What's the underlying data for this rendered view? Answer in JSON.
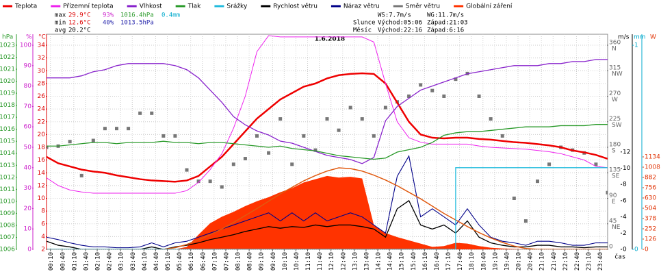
{
  "chart_data": {
    "type": "line",
    "title": "1.6.2018",
    "xlabel": "čas",
    "xlim": [
      0,
      24
    ],
    "xticks": [
      {
        "value": 0.1667,
        "label": "00:10"
      },
      {
        "value": 0.6667,
        "label": "00:40"
      },
      {
        "value": 1.1667,
        "label": "01:10"
      },
      {
        "value": 1.6667,
        "label": "01:40"
      },
      {
        "value": 2.1667,
        "label": "02:10"
      },
      {
        "value": 2.6667,
        "label": "02:40"
      },
      {
        "value": 3.1667,
        "label": "03:10"
      },
      {
        "value": 3.6667,
        "label": "03:40"
      },
      {
        "value": 4.1667,
        "label": "04:10"
      },
      {
        "value": 4.6667,
        "label": "04:40"
      },
      {
        "value": 5.1667,
        "label": "05:10"
      },
      {
        "value": 5.6667,
        "label": "05:40"
      },
      {
        "value": 6.1667,
        "label": "06:10"
      },
      {
        "value": 6.6667,
        "label": "06:40"
      },
      {
        "value": 7.1667,
        "label": "07:10"
      },
      {
        "value": 7.6667,
        "label": "07:40"
      },
      {
        "value": 8.1667,
        "label": "08:10"
      },
      {
        "value": 8.6667,
        "label": "08:40"
      },
      {
        "value": 9.1667,
        "label": "09:10"
      },
      {
        "value": 9.6667,
        "label": "09:40"
      },
      {
        "value": 10.1667,
        "label": "10:10"
      },
      {
        "value": 10.6667,
        "label": "10:40"
      },
      {
        "value": 11.1667,
        "label": "11:10"
      },
      {
        "value": 11.6667,
        "label": "11:40"
      },
      {
        "value": 12.1667,
        "label": "12:10"
      },
      {
        "value": 12.6667,
        "label": "12:40"
      },
      {
        "value": 13.1667,
        "label": "13:10"
      },
      {
        "value": 13.6667,
        "label": "13:40"
      },
      {
        "value": 14.1667,
        "label": "14:10"
      },
      {
        "value": 14.6667,
        "label": "14:40"
      },
      {
        "value": 15.1667,
        "label": "15:10"
      },
      {
        "value": 15.6667,
        "label": "15:40"
      },
      {
        "value": 16.1667,
        "label": "16:10"
      },
      {
        "value": 16.6667,
        "label": "16:40"
      },
      {
        "value": 17.1667,
        "label": "17:10"
      },
      {
        "value": 17.6667,
        "label": "17:40"
      },
      {
        "value": 18.1667,
        "label": "18:10"
      },
      {
        "value": 18.6667,
        "label": "18:40"
      },
      {
        "value": 19.1667,
        "label": "19:10"
      },
      {
        "value": 19.6667,
        "label": "19:40"
      },
      {
        "value": 20.1667,
        "label": "20:10"
      },
      {
        "value": 20.6667,
        "label": "20:40"
      },
      {
        "value": 21.1667,
        "label": "21:10"
      },
      {
        "value": 21.6667,
        "label": "21:40"
      },
      {
        "value": 22.1667,
        "label": "22:10"
      },
      {
        "value": 22.6667,
        "label": "22:40"
      },
      {
        "value": 23.1667,
        "label": "23:10"
      },
      {
        "value": 23.6667,
        "label": "23:40"
      }
    ],
    "grid": true,
    "axes": {
      "press": {
        "unit": "hPa",
        "color": "#2a9a2a",
        "lim": [
          1006,
          1023.91
        ],
        "ticks": [
          1006,
          1007,
          1008,
          1009,
          1010,
          1011,
          1012,
          1013,
          1014,
          1015,
          1016,
          1017,
          1018,
          1019,
          1020,
          1021,
          1022,
          1023
        ]
      },
      "hum": {
        "unit": "%",
        "color": "#cc22cc",
        "lim": [
          0,
          105.37
        ],
        "ticks": [
          0,
          10,
          20,
          30,
          40,
          50,
          60,
          70,
          80,
          90,
          100
        ]
      },
      "temp": {
        "unit": "°C",
        "color": "#dd0000",
        "lim": [
          2,
          35.72
        ],
        "ticks": [
          2,
          4,
          6,
          8,
          10,
          12,
          14,
          16,
          18,
          20,
          22,
          24,
          26,
          28,
          30,
          32,
          34
        ]
      },
      "dir": {
        "color": "#666666",
        "lim": [
          0,
          379.3
        ],
        "ticks": [
          0,
          45,
          90,
          135,
          180,
          225,
          270,
          315,
          360
        ],
        "names": [
          null,
          "NE",
          "E",
          "SE",
          "S",
          "SW",
          "W",
          "NW",
          "N"
        ]
      },
      "wind": {
        "unit": "m/s",
        "color": "#000000",
        "lim": [
          0,
          26.5
        ],
        "ticks": [
          0,
          2,
          4,
          6,
          8,
          10,
          12
        ]
      },
      "rain": {
        "unit": "mm",
        "color": "#00aacc",
        "lim": [
          0,
          1.054
        ],
        "ticks": [
          0,
          1
        ]
      },
      "rad": {
        "unit": "W",
        "color": "#e03000",
        "lim": [
          0,
          2638
        ],
        "ticks": [
          0,
          126,
          252,
          378,
          504,
          630,
          756,
          882,
          1008,
          1134
        ]
      }
    },
    "x": [
      0,
      0.5,
      1,
      1.5,
      2,
      2.5,
      3,
      3.5,
      4,
      4.5,
      5,
      5.5,
      6,
      6.5,
      7,
      7.5,
      8,
      8.5,
      9,
      9.5,
      10,
      10.5,
      11,
      11.5,
      12,
      12.5,
      13,
      13.5,
      14,
      14.5,
      15,
      15.5,
      16,
      16.5,
      17,
      17.5,
      18,
      18.5,
      19,
      19.5,
      20,
      20.5,
      21,
      21.5,
      22,
      22.5,
      23,
      23.5,
      24
    ],
    "series": [
      {
        "name": "Teplota",
        "color": "#ee0000",
        "axis": "temp",
        "kind": "line",
        "width": 2.5,
        "values": [
          16.5,
          15.5,
          15,
          14.5,
          14.2,
          14,
          13.6,
          13.3,
          13,
          12.8,
          12.7,
          12.6,
          12.8,
          13.5,
          15,
          16.5,
          18.5,
          20.5,
          22.5,
          24,
          25.5,
          26.5,
          27.5,
          28,
          28.8,
          29.3,
          29.5,
          29.6,
          29.5,
          28,
          25,
          22,
          20,
          19.5,
          19.4,
          19.5,
          19.5,
          19.3,
          19.2,
          19,
          18.8,
          18.7,
          18.5,
          18.3,
          18,
          17.5,
          17.2,
          16.8,
          16.2
        ]
      },
      {
        "name": "Přízemní teplota",
        "color": "#ee22ee",
        "axis": "temp",
        "kind": "line",
        "width": 1,
        "values": [
          13.2,
          12,
          11.3,
          11,
          10.8,
          10.8,
          10.8,
          10.8,
          10.8,
          10.8,
          10.8,
          10.8,
          11.2,
          12.5,
          14.5,
          17,
          21,
          26,
          33,
          35.5,
          35.3,
          35.3,
          35.3,
          35.3,
          35.3,
          35.3,
          35.3,
          35.3,
          34.5,
          28,
          22,
          19.5,
          18.8,
          18.5,
          18.5,
          18.5,
          18.5,
          18.2,
          18,
          17.9,
          17.8,
          17.7,
          17.5,
          17.3,
          17,
          16.5,
          16,
          15,
          14.8
        ]
      },
      {
        "name": "Vlhkost",
        "color": "#8822cc",
        "axis": "hum",
        "kind": "line",
        "width": 1.3,
        "values": [
          84,
          84,
          84,
          85,
          87,
          88,
          90,
          91,
          91,
          91,
          91,
          90,
          88,
          84,
          78,
          72,
          65,
          61,
          58,
          56,
          53,
          52,
          50,
          48,
          46,
          45,
          44,
          42,
          45,
          63,
          70,
          74,
          78,
          80,
          82,
          84,
          86,
          87,
          88,
          89,
          90,
          90,
          90,
          91,
          91,
          92,
          92,
          93,
          93
        ]
      },
      {
        "name": "Tlak",
        "color": "#2a9a2a",
        "axis": "press",
        "kind": "line",
        "width": 1.3,
        "values": [
          1014.6,
          1014.6,
          1014.7,
          1014.8,
          1014.9,
          1014.9,
          1014.8,
          1014.9,
          1014.9,
          1014.9,
          1015.0,
          1014.9,
          1014.9,
          1014.8,
          1014.9,
          1014.9,
          1014.8,
          1014.7,
          1014.6,
          1014.5,
          1014.6,
          1014.4,
          1014.3,
          1014.2,
          1014.0,
          1013.8,
          1013.7,
          1013.6,
          1013.5,
          1013.6,
          1014.1,
          1014.3,
          1014.5,
          1014.9,
          1015.5,
          1015.7,
          1015.8,
          1015.8,
          1015.9,
          1016.0,
          1016.1,
          1016.2,
          1016.2,
          1016.2,
          1016.3,
          1016.3,
          1016.3,
          1016.4,
          1016.4
        ]
      },
      {
        "name": "Srážky",
        "color": "#22bbdd",
        "axis": "rain",
        "kind": "step",
        "width": 1.3,
        "values": [
          0,
          0,
          0,
          0,
          0,
          0,
          0,
          0,
          0,
          0,
          0,
          0,
          0,
          0,
          0,
          0,
          0,
          0,
          0,
          0,
          0,
          0,
          0,
          0,
          0,
          0,
          0,
          0,
          0,
          0,
          0,
          0,
          0,
          0,
          0,
          0.4,
          0.4,
          0.4,
          0.4,
          0.4,
          0.4,
          0.4,
          0.4,
          0.4,
          0.4,
          0.4,
          0.4,
          0.4,
          0.4
        ]
      },
      {
        "name": "Rychlost větru",
        "color": "#000000",
        "axis": "wind",
        "kind": "line",
        "width": 1.3,
        "values": [
          1,
          0.5,
          0.3,
          0,
          0,
          0,
          0,
          0,
          0,
          0.3,
          0,
          0.3,
          0.5,
          0.8,
          1.2,
          1.5,
          1.8,
          2.2,
          2.5,
          2.8,
          2.6,
          2.8,
          2.7,
          3,
          2.8,
          3,
          3,
          2.8,
          2.5,
          1.5,
          5,
          6,
          3,
          2.5,
          3,
          2,
          3.5,
          1.5,
          0.8,
          0.5,
          0.3,
          0.3,
          0.5,
          0.5,
          0.3,
          0.3,
          0.2,
          0.3,
          0.3
        ]
      },
      {
        "name": "Náraz větru",
        "color": "#000088",
        "axis": "wind",
        "kind": "line",
        "width": 1.1,
        "values": [
          1.5,
          1.2,
          0.8,
          0.5,
          0.3,
          0.3,
          0.2,
          0.2,
          0.3,
          0.8,
          0.3,
          0.8,
          1,
          1.5,
          2,
          2.5,
          3,
          3.5,
          4,
          4.5,
          3.5,
          4.5,
          3.5,
          4.5,
          3.5,
          4,
          4.5,
          4,
          3,
          2,
          9,
          11.5,
          4,
          5,
          4,
          3,
          5,
          3,
          1.5,
          1,
          0.8,
          0.5,
          1,
          1,
          0.8,
          0.5,
          0.5,
          0.8,
          0.8
        ]
      },
      {
        "name": "Směr větru",
        "color": "#777777",
        "axis": "dir",
        "kind": "scatter",
        "values": [
          180,
          182,
          190,
          130,
          192,
          213,
          213,
          213,
          240,
          240,
          200,
          200,
          140,
          120,
          120,
          110,
          150,
          160,
          200,
          170,
          230,
          150,
          200,
          175,
          230,
          210,
          250,
          230,
          200,
          250,
          260,
          270,
          290,
          280,
          270,
          300,
          310,
          270,
          230,
          200,
          90,
          50,
          120,
          150,
          180,
          175,
          170,
          150,
          100
        ]
      },
      {
        "name": "Globální záření",
        "color": "#ff3300",
        "axis": "rad",
        "kind": "area",
        "values": [
          0,
          0,
          0,
          0,
          0,
          0,
          0,
          0,
          0,
          0,
          0,
          0,
          30,
          180,
          320,
          400,
          460,
          530,
          590,
          640,
          700,
          750,
          820,
          860,
          900,
          880,
          890,
          870,
          300,
          200,
          150,
          110,
          70,
          30,
          40,
          80,
          70,
          40,
          20,
          10,
          5,
          0,
          0,
          0,
          0,
          0,
          0,
          0,
          0
        ]
      },
      {
        "axis": "rad",
        "kind": "line",
        "color": "#e05a10",
        "width": 1.5,
        "values": [
          0,
          0,
          0,
          0,
          0,
          0,
          0,
          0,
          0,
          0,
          0,
          20,
          60,
          115,
          180,
          250,
          330,
          415,
          500,
          590,
          680,
          760,
          840,
          905,
          960,
          1000,
          990,
          960,
          910,
          850,
          780,
          700,
          620,
          530,
          440,
          360,
          280,
          205,
          140,
          85,
          40,
          10,
          0,
          0,
          0,
          0,
          0,
          0,
          0
        ]
      }
    ],
    "stats": [
      {
        "label": "max",
        "temp": "29.9°C",
        "hum": "93%",
        "press": "1016.4hPa",
        "rain": "0.4mm"
      },
      {
        "label": "min",
        "temp": "12.6°C",
        "hum": "40%",
        "press": "1013.5hPa"
      },
      {
        "label": "avg",
        "temp": "20.2°C"
      }
    ],
    "info": {
      "ws": "WS:7.7m/s",
      "wg": "WG:11.7m/s",
      "sun": "Slunce",
      "sunrise": "Východ:05:06",
      "sunset": "Západ:21:03",
      "moon": "Měsíc",
      "moonrise": "Východ:22:16",
      "moonset": "Západ:6:16"
    }
  }
}
